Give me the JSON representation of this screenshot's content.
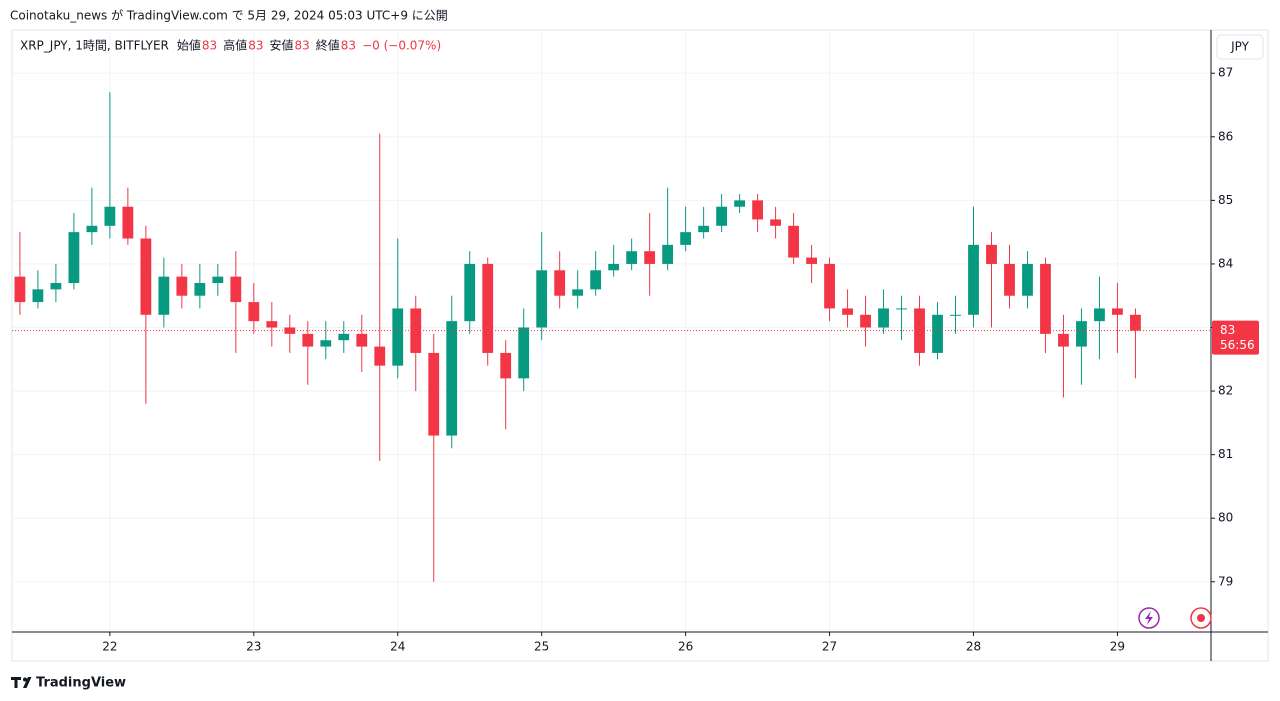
{
  "header": {
    "published": "Coinotaku_news が TradingView.com で 5月 29, 2024 05:03 UTC+9 に公開",
    "brand": "TradingView"
  },
  "chart_data": {
    "type": "candlestick",
    "title": "XRP_JPY, 1時間, BITFLYER",
    "legend_values": [
      {
        "name": "始値",
        "value": "83"
      },
      {
        "name": "高値",
        "value": "83"
      },
      {
        "name": "安値",
        "value": "83"
      },
      {
        "name": "終値",
        "value": "83"
      }
    ],
    "change": "−0 (−0.07%)",
    "currency": "JPY",
    "last_price": {
      "value": 82.95,
      "label": "83"
    },
    "countdown": "56:56",
    "up_color": "#089981",
    "down_color": "#f23645",
    "x": [
      21.375,
      21.5,
      21.625,
      21.75,
      21.875,
      22.0,
      22.125,
      22.25,
      22.375,
      22.5,
      22.625,
      22.75,
      22.875,
      23.0,
      23.125,
      23.25,
      23.375,
      23.5,
      23.625,
      23.75,
      23.875,
      24.0,
      24.125,
      24.25,
      24.375,
      24.5,
      24.625,
      24.75,
      24.875,
      25.0,
      25.125,
      25.25,
      25.375,
      25.5,
      25.625,
      25.75,
      25.875,
      26.0,
      26.125,
      26.25,
      26.375,
      26.5,
      26.625,
      26.75,
      26.875,
      27.0,
      27.125,
      27.25,
      27.375,
      27.5,
      27.625,
      27.75,
      27.875,
      28.0,
      28.125,
      28.25,
      28.375,
      28.5,
      28.625,
      28.75,
      28.875,
      29.0,
      29.125
    ],
    "open": [
      83.8,
      83.4,
      83.6,
      83.7,
      84.5,
      84.6,
      84.9,
      84.4,
      83.2,
      83.8,
      83.5,
      83.7,
      83.8,
      83.4,
      83.1,
      83.0,
      82.9,
      82.7,
      82.8,
      82.9,
      82.7,
      82.4,
      83.3,
      82.6,
      81.3,
      83.1,
      84.0,
      82.6,
      82.2,
      83.0,
      83.9,
      83.5,
      83.6,
      83.9,
      84.0,
      84.2,
      84.0,
      84.3,
      84.5,
      84.6,
      84.9,
      85.0,
      84.7,
      84.6,
      84.1,
      84.0,
      83.3,
      83.2,
      83.0,
      83.3,
      83.3,
      82.6,
      83.2,
      83.2,
      84.3,
      84.0,
      83.5,
      84.0,
      82.9,
      82.7,
      83.1,
      83.3,
      83.2
    ],
    "high": [
      84.5,
      83.9,
      84.0,
      84.8,
      85.2,
      86.7,
      85.2,
      84.6,
      84.1,
      84.0,
      84.0,
      84.0,
      84.2,
      83.7,
      83.4,
      83.2,
      83.1,
      83.1,
      83.1,
      83.2,
      86.05,
      84.4,
      83.5,
      82.9,
      83.5,
      84.2,
      84.1,
      82.8,
      83.3,
      84.5,
      84.2,
      83.9,
      84.2,
      84.3,
      84.4,
      84.8,
      85.2,
      84.9,
      84.9,
      85.1,
      85.1,
      85.1,
      84.9,
      84.8,
      84.3,
      84.1,
      83.6,
      83.5,
      83.6,
      83.5,
      83.5,
      83.4,
      83.5,
      84.9,
      84.5,
      84.3,
      84.2,
      84.1,
      83.2,
      83.3,
      83.8,
      83.7,
      83.3
    ],
    "low": [
      83.2,
      83.3,
      83.4,
      83.6,
      84.3,
      84.4,
      84.3,
      81.8,
      83.0,
      83.3,
      83.3,
      83.5,
      82.6,
      82.9,
      82.7,
      82.6,
      82.1,
      82.5,
      82.6,
      82.3,
      80.9,
      82.2,
      82.0,
      79.0,
      81.1,
      82.9,
      82.4,
      81.4,
      82.0,
      82.8,
      83.3,
      83.3,
      83.5,
      83.8,
      83.9,
      83.5,
      83.9,
      84.2,
      84.4,
      84.5,
      84.8,
      84.5,
      84.4,
      84.0,
      83.7,
      83.1,
      83.0,
      82.7,
      82.9,
      82.8,
      82.4,
      82.5,
      82.9,
      83.0,
      83.0,
      83.3,
      83.3,
      82.6,
      81.9,
      82.1,
      82.5,
      82.6,
      82.2
    ],
    "close": [
      83.4,
      83.6,
      83.7,
      84.5,
      84.6,
      84.9,
      84.4,
      83.2,
      83.8,
      83.5,
      83.7,
      83.8,
      83.4,
      83.1,
      83.0,
      82.9,
      82.7,
      82.8,
      82.9,
      82.7,
      82.4,
      83.3,
      82.6,
      81.3,
      83.1,
      84.0,
      82.6,
      82.2,
      83.0,
      83.9,
      83.5,
      83.6,
      83.9,
      84.0,
      84.2,
      84.0,
      84.3,
      84.5,
      84.6,
      84.9,
      85.0,
      84.7,
      84.6,
      84.1,
      84.0,
      83.3,
      83.2,
      83.0,
      83.3,
      83.3,
      82.6,
      83.2,
      83.2,
      84.3,
      84.0,
      83.5,
      84.0,
      82.9,
      82.7,
      83.1,
      83.3,
      83.2,
      82.95
    ],
    "xlim": [
      21.32,
      29.65
    ],
    "xticks": [
      22,
      23,
      24,
      25,
      26,
      27,
      28,
      29
    ],
    "ylim": [
      78.21,
      87.68
    ],
    "yticks": [
      79,
      80,
      81,
      82,
      83,
      84,
      85,
      86,
      87
    ],
    "grid": true
  }
}
